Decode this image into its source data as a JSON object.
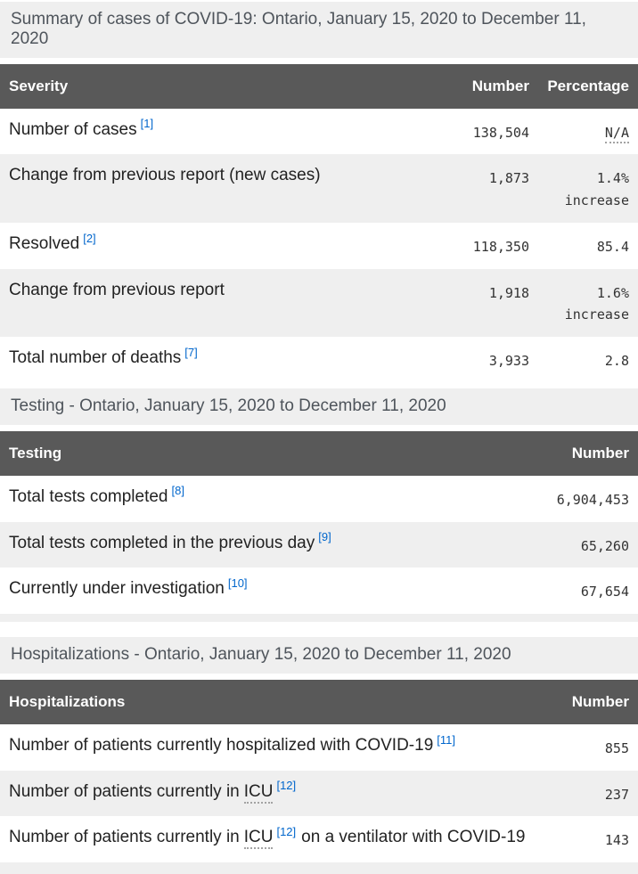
{
  "colors": {
    "table_header_bg": "#595959",
    "table_header_text": "#ffffff",
    "zebra_stripe": "#efefef",
    "caption_bg": "#efefef",
    "caption_text": "#4e545b",
    "footnote_link": "#0066cc",
    "body_text": "#222222",
    "number_text": "#333333"
  },
  "tables": [
    {
      "caption": "Summary of cases of COVID-19: Ontario, January 15, 2020 to December 11, 2020",
      "columns": [
        "Severity",
        "Number",
        "Percentage"
      ],
      "rows": [
        {
          "label": "Number of cases",
          "footnote": "[1]",
          "number": "138,504",
          "pct": "N/A"
        },
        {
          "label": "Change from previous report (new cases)",
          "number": "1,873",
          "pct": "1.4%",
          "pct_note": "increase"
        },
        {
          "label": "Resolved",
          "footnote": "[2]",
          "number": "118,350",
          "pct": "85.4"
        },
        {
          "label": "Change from previous report",
          "number": "1,918",
          "pct": "1.6%",
          "pct_note": "increase"
        },
        {
          "label": "Total number of deaths",
          "footnote": "[7]",
          "number": "3,933",
          "pct": "2.8"
        }
      ]
    },
    {
      "caption": "Testing - Ontario, January 15, 2020 to December 11, 2020",
      "columns": [
        "Testing",
        "Number"
      ],
      "rows": [
        {
          "label": "Total tests completed",
          "footnote": "[8]",
          "number": "6,904,453"
        },
        {
          "label": "Total tests completed in the previous day",
          "footnote": "[9]",
          "number": "65,260"
        },
        {
          "label": "Currently under investigation",
          "footnote": "[10]",
          "number": "67,654"
        }
      ]
    },
    {
      "caption": "Hospitalizations - Ontario, January 15, 2020 to December 11, 2020",
      "columns": [
        "Hospitalizations",
        "Number"
      ],
      "rows": [
        {
          "label": "Number of patients currently hospitalized with COVID-19",
          "footnote": "[11]",
          "number": "855"
        },
        {
          "label": "Number of patients currently in",
          "abbr": "ICU",
          "footnote": "[12]",
          "number": "237"
        },
        {
          "label": "Number of patients currently in",
          "abbr": "ICU",
          "footnote": "[12]",
          "label_post": "on a ventilator with COVID-19",
          "number": "143"
        }
      ]
    }
  ]
}
